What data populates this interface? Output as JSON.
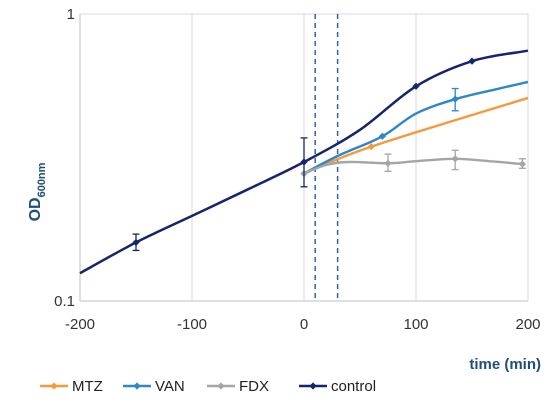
{
  "chart_data": {
    "type": "line",
    "xlabel": "time (min)",
    "ylabel_main": "OD",
    "ylabel_sub": "600nm",
    "x_ticks": [
      "-200",
      "-100",
      "0",
      "100",
      "200"
    ],
    "y_ticks": [
      "0.1",
      "1"
    ],
    "xlim": [
      -200,
      200
    ],
    "ylim": [
      0.1,
      1
    ],
    "y_scale": "log",
    "grid": "vertical",
    "legend": "bottom",
    "markers_x": [
      10,
      30
    ],
    "series": [
      {
        "name": "MTZ",
        "color": "#f59a3c",
        "x": [
          0,
          60,
          200
        ],
        "y": [
          0.278,
          0.345,
          0.51
        ],
        "marker_x": [
          0,
          60
        ],
        "err": []
      },
      {
        "name": "VAN",
        "color": "#2f86c8",
        "x": [
          0,
          30,
          70,
          100,
          135,
          170,
          200
        ],
        "y": [
          0.278,
          0.32,
          0.375,
          0.45,
          0.505,
          0.545,
          0.58
        ],
        "marker_x": [
          0,
          70,
          135
        ],
        "err": [
          {
            "x": 135,
            "lo": 0.46,
            "hi": 0.55
          }
        ]
      },
      {
        "name": "FDX",
        "color": "#a5a5a5",
        "x": [
          0,
          20,
          40,
          75,
          100,
          135,
          170,
          195
        ],
        "y": [
          0.278,
          0.298,
          0.305,
          0.302,
          0.307,
          0.313,
          0.306,
          0.3
        ],
        "marker_x": [
          0,
          75,
          135,
          195
        ],
        "err": [
          {
            "x": 75,
            "lo": 0.283,
            "hi": 0.325
          },
          {
            "x": 135,
            "lo": 0.287,
            "hi": 0.335
          },
          {
            "x": 195,
            "lo": 0.29,
            "hi": 0.313
          }
        ]
      },
      {
        "name": "control",
        "color": "#16256b",
        "x": [
          -200,
          -150,
          -100,
          -50,
          0,
          50,
          100,
          150,
          200
        ],
        "y": [
          0.125,
          0.16,
          0.198,
          0.245,
          0.305,
          0.395,
          0.56,
          0.685,
          0.745
        ],
        "marker_x": [
          -150,
          0,
          100,
          150
        ],
        "err": [
          {
            "x": -150,
            "lo": 0.15,
            "hi": 0.171
          },
          {
            "x": 0,
            "lo": 0.25,
            "hi": 0.37
          }
        ]
      }
    ]
  }
}
